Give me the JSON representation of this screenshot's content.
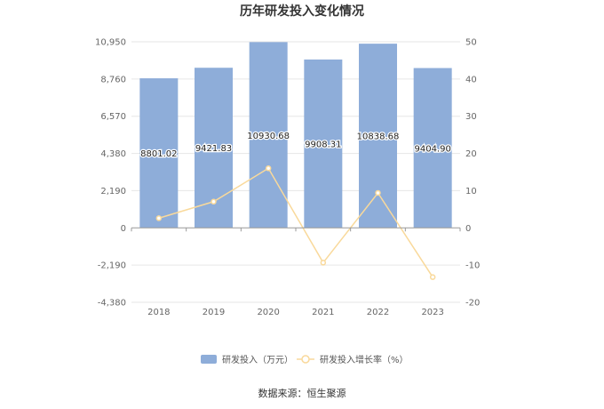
{
  "chart_data": {
    "type": "bar",
    "title": "历年研发投入变化情况",
    "categories": [
      "2018",
      "2019",
      "2020",
      "2021",
      "2022",
      "2023"
    ],
    "series": [
      {
        "name": "研发投入（万元）",
        "type": "bar",
        "axis": "left",
        "color": "#8eadd9",
        "values": [
          8801.02,
          9421.83,
          10930.68,
          9908.31,
          10838.68,
          9404.9
        ],
        "labels": [
          "8801.02",
          "9421.83",
          "10930.68",
          "9908.31",
          "10838.68",
          "9404.90"
        ]
      },
      {
        "name": "研发投入增长率（%）",
        "type": "line",
        "axis": "right",
        "color": "#f9d99b",
        "values": [
          2.6,
          7.05,
          16.01,
          -9.35,
          9.39,
          -13.23
        ]
      }
    ],
    "y_left": {
      "ylim": [
        -4380,
        10950
      ],
      "ticks": [
        -4380,
        -2190,
        0,
        2190,
        4380,
        6570,
        8760,
        10950
      ],
      "tick_labels": [
        "-4,380",
        "-2,190",
        "0",
        "2,190",
        "4,380",
        "6,570",
        "8,760",
        "10,950"
      ]
    },
    "y_right": {
      "ylim": [
        -20,
        50
      ],
      "ticks": [
        -20,
        -10,
        0,
        10,
        20,
        30,
        40,
        50
      ],
      "tick_labels": [
        "-20",
        "-10",
        "0",
        "10",
        "20",
        "30",
        "40",
        "50"
      ]
    },
    "grid": true,
    "legend_position": "bottom",
    "source": "数据来源：恒生聚源"
  }
}
